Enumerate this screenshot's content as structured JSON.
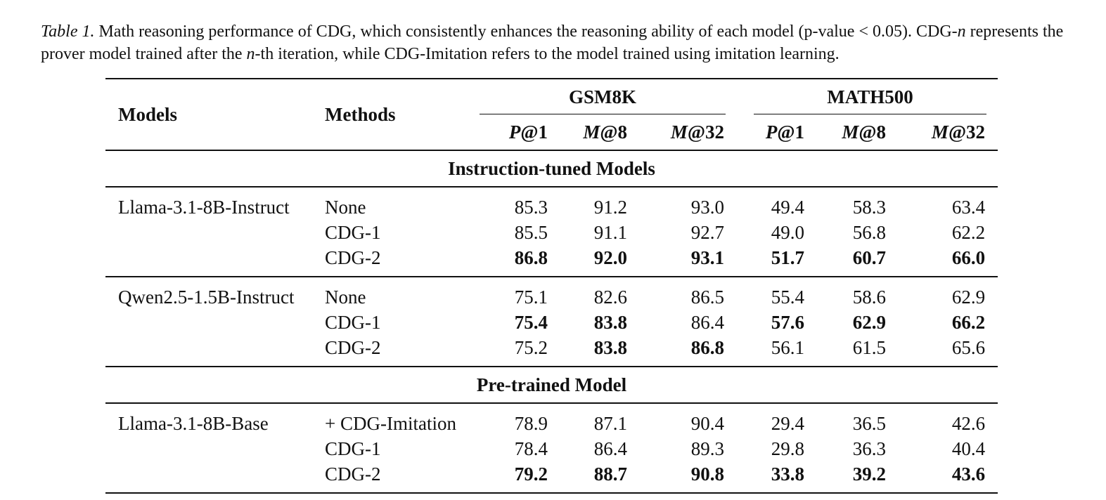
{
  "caption": {
    "label": "Table 1.",
    "text_1": " Math reasoning performance of CDG, which consistently enhances the reasoning ability of each model (p-value ",
    "lt": "< 0.05",
    "text_2": "). CDG-",
    "n1": "n",
    "text_3": " represents the prover model trained after the ",
    "n2": "n",
    "text_4": "-th iteration, while CDG-Imitation refers to the model trained using imitation learning."
  },
  "table": {
    "headers": {
      "models": "Models",
      "methods": "Methods",
      "group_1": "GSM8K",
      "group_2": "MATH500",
      "sub": [
        {
          "letter": "P",
          "suffix": "@1"
        },
        {
          "letter": "M",
          "suffix": "@8"
        },
        {
          "letter": "M",
          "suffix": "@32"
        },
        {
          "letter": "P",
          "suffix": "@1"
        },
        {
          "letter": "M",
          "suffix": "@8"
        },
        {
          "letter": "M",
          "suffix": "@32"
        }
      ]
    },
    "sections": [
      {
        "title": "Instruction-tuned Models",
        "groups": [
          {
            "model": "Llama-3.1-8B-Instruct",
            "rows": [
              {
                "method": "None",
                "values": [
                  "85.3",
                  "91.2",
                  "93.0",
                  "49.4",
                  "58.3",
                  "63.4"
                ],
                "bold": [
                  false,
                  false,
                  false,
                  false,
                  false,
                  false
                ]
              },
              {
                "method": "CDG-1",
                "values": [
                  "85.5",
                  "91.1",
                  "92.7",
                  "49.0",
                  "56.8",
                  "62.2"
                ],
                "bold": [
                  false,
                  false,
                  false,
                  false,
                  false,
                  false
                ]
              },
              {
                "method": "CDG-2",
                "values": [
                  "86.8",
                  "92.0",
                  "93.1",
                  "51.7",
                  "60.7",
                  "66.0"
                ],
                "bold": [
                  true,
                  true,
                  true,
                  true,
                  true,
                  true
                ]
              }
            ]
          },
          {
            "model": "Qwen2.5-1.5B-Instruct",
            "rows": [
              {
                "method": "None",
                "values": [
                  "75.1",
                  "82.6",
                  "86.5",
                  "55.4",
                  "58.6",
                  "62.9"
                ],
                "bold": [
                  false,
                  false,
                  false,
                  false,
                  false,
                  false
                ]
              },
              {
                "method": "CDG-1",
                "values": [
                  "75.4",
                  "83.8",
                  "86.4",
                  "57.6",
                  "62.9",
                  "66.2"
                ],
                "bold": [
                  true,
                  true,
                  false,
                  true,
                  true,
                  true
                ]
              },
              {
                "method": "CDG-2",
                "values": [
                  "75.2",
                  "83.8",
                  "86.8",
                  "56.1",
                  "61.5",
                  "65.6"
                ],
                "bold": [
                  false,
                  true,
                  true,
                  false,
                  false,
                  false
                ]
              }
            ]
          }
        ]
      },
      {
        "title": "Pre-trained Model",
        "groups": [
          {
            "model": "Llama-3.1-8B-Base",
            "rows": [
              {
                "method": "+ CDG-Imitation",
                "values": [
                  "78.9",
                  "87.1",
                  "90.4",
                  "29.4",
                  "36.5",
                  "42.6"
                ],
                "bold": [
                  false,
                  false,
                  false,
                  false,
                  false,
                  false
                ]
              },
              {
                "method": "CDG-1",
                "values": [
                  "78.4",
                  "86.4",
                  "89.3",
                  "29.8",
                  "36.3",
                  "40.4"
                ],
                "bold": [
                  false,
                  false,
                  false,
                  false,
                  false,
                  false
                ]
              },
              {
                "method": "CDG-2",
                "values": [
                  "79.2",
                  "88.7",
                  "90.8",
                  "33.8",
                  "39.2",
                  "43.6"
                ],
                "bold": [
                  true,
                  true,
                  true,
                  true,
                  true,
                  true
                ]
              }
            ]
          }
        ]
      }
    ]
  }
}
